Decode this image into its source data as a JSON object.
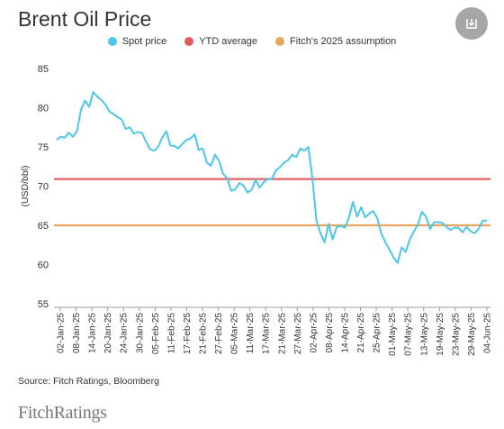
{
  "title": "Brent Oil Price",
  "legend": [
    {
      "label": "Spot price",
      "color": "#4cc6ea"
    },
    {
      "label": "YTD average",
      "color": "#e25c5c"
    },
    {
      "label": "Fitch's 2025 assumption",
      "color": "#e9a55b"
    }
  ],
  "source": "Source: Fitch Ratings, Bloomberg",
  "logo": "FitchRatings",
  "download_icon": "download-icon",
  "chart_data": {
    "type": "line",
    "ylabel": "(USD/bbl)",
    "ylim": [
      55,
      85
    ],
    "yticks": [
      55,
      60,
      65,
      70,
      75,
      80,
      85
    ],
    "xtick_labels": [
      "02-Jan-25",
      "08-Jan-25",
      "14-Jan-25",
      "20-Jan-25",
      "24-Jan-25",
      "30-Jan-25",
      "05-Feb-25",
      "11-Feb-25",
      "17-Feb-25",
      "21-Feb-25",
      "27-Feb-25",
      "05-Mar-25",
      "11-Mar-25",
      "17-Mar-25",
      "21-Mar-25",
      "27-Mar-25",
      "02-Apr-25",
      "08-Apr-25",
      "14-Apr-25",
      "21-Apr-25",
      "25-Apr-25",
      "01-May-25",
      "07-May-25",
      "13-May-25",
      "19-May-25",
      "23-May-25",
      "29-May-25",
      "04-Jun-25"
    ],
    "grid": false,
    "legend_position": "top-center",
    "series": [
      {
        "name": "Spot price",
        "color": "#4cc6ea",
        "values": [
          75.9,
          76.3,
          76.2,
          76.8,
          76.3,
          77.0,
          79.8,
          80.9,
          80.1,
          82.0,
          81.4,
          81.0,
          80.4,
          79.5,
          79.2,
          78.8,
          78.5,
          77.3,
          77.5,
          76.7,
          76.9,
          76.8,
          75.7,
          74.7,
          74.5,
          75.0,
          76.2,
          77.0,
          75.2,
          75.1,
          74.8,
          75.4,
          75.9,
          76.1,
          76.6,
          74.6,
          74.8,
          73.0,
          72.6,
          74.0,
          73.2,
          71.6,
          71.0,
          69.4,
          69.6,
          70.4,
          70.1,
          69.2,
          69.5,
          70.8,
          69.8,
          70.5,
          70.9,
          70.9,
          72.0,
          72.4,
          73.0,
          73.3,
          74.0,
          73.7,
          74.8,
          74.5,
          75.0,
          71.0,
          65.6,
          64.0,
          62.8,
          65.2,
          63.2,
          64.8,
          64.9,
          64.7,
          66.0,
          68.0,
          66.1,
          67.3,
          66.0,
          66.5,
          66.8,
          65.9,
          63.9,
          62.8,
          61.9,
          60.9,
          60.2,
          62.2,
          61.6,
          63.2,
          64.2,
          65.1,
          66.7,
          66.1,
          64.5,
          65.4,
          65.4,
          65.3,
          64.8,
          64.4,
          64.7,
          64.7,
          64.1,
          64.8,
          64.2,
          64.0,
          64.6,
          65.6,
          65.6
        ]
      },
      {
        "name": "YTD average",
        "color": "#e25c5c",
        "values": [
          70.9
        ]
      },
      {
        "name": "Fitch's 2025 assumption",
        "color": "#e9a55b",
        "values": [
          65.0
        ]
      }
    ]
  }
}
